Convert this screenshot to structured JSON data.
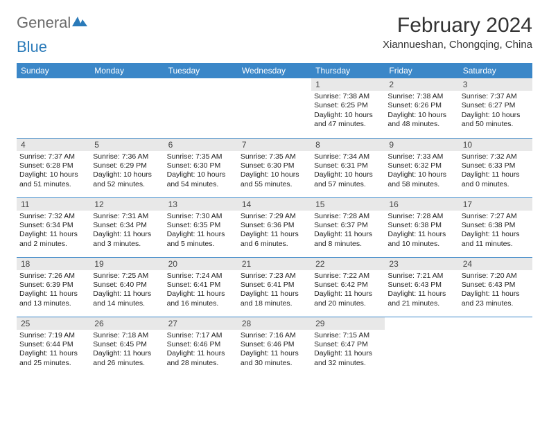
{
  "logo": {
    "general": "General",
    "blue": "Blue"
  },
  "title": "February 2024",
  "location": "Xiannueshan, Chongqing, China",
  "header_bg": "#3b87c8",
  "day_num_bg": "#e8e8e8",
  "border_color": "#3b87c8",
  "weekdays": [
    "Sunday",
    "Monday",
    "Tuesday",
    "Wednesday",
    "Thursday",
    "Friday",
    "Saturday"
  ],
  "weeks": [
    [
      null,
      null,
      null,
      null,
      {
        "n": "1",
        "sunrise": "7:38 AM",
        "sunset": "6:25 PM",
        "daylight": "10 hours and 47 minutes."
      },
      {
        "n": "2",
        "sunrise": "7:38 AM",
        "sunset": "6:26 PM",
        "daylight": "10 hours and 48 minutes."
      },
      {
        "n": "3",
        "sunrise": "7:37 AM",
        "sunset": "6:27 PM",
        "daylight": "10 hours and 50 minutes."
      }
    ],
    [
      {
        "n": "4",
        "sunrise": "7:37 AM",
        "sunset": "6:28 PM",
        "daylight": "10 hours and 51 minutes."
      },
      {
        "n": "5",
        "sunrise": "7:36 AM",
        "sunset": "6:29 PM",
        "daylight": "10 hours and 52 minutes."
      },
      {
        "n": "6",
        "sunrise": "7:35 AM",
        "sunset": "6:30 PM",
        "daylight": "10 hours and 54 minutes."
      },
      {
        "n": "7",
        "sunrise": "7:35 AM",
        "sunset": "6:30 PM",
        "daylight": "10 hours and 55 minutes."
      },
      {
        "n": "8",
        "sunrise": "7:34 AM",
        "sunset": "6:31 PM",
        "daylight": "10 hours and 57 minutes."
      },
      {
        "n": "9",
        "sunrise": "7:33 AM",
        "sunset": "6:32 PM",
        "daylight": "10 hours and 58 minutes."
      },
      {
        "n": "10",
        "sunrise": "7:32 AM",
        "sunset": "6:33 PM",
        "daylight": "11 hours and 0 minutes."
      }
    ],
    [
      {
        "n": "11",
        "sunrise": "7:32 AM",
        "sunset": "6:34 PM",
        "daylight": "11 hours and 2 minutes."
      },
      {
        "n": "12",
        "sunrise": "7:31 AM",
        "sunset": "6:34 PM",
        "daylight": "11 hours and 3 minutes."
      },
      {
        "n": "13",
        "sunrise": "7:30 AM",
        "sunset": "6:35 PM",
        "daylight": "11 hours and 5 minutes."
      },
      {
        "n": "14",
        "sunrise": "7:29 AM",
        "sunset": "6:36 PM",
        "daylight": "11 hours and 6 minutes."
      },
      {
        "n": "15",
        "sunrise": "7:28 AM",
        "sunset": "6:37 PM",
        "daylight": "11 hours and 8 minutes."
      },
      {
        "n": "16",
        "sunrise": "7:28 AM",
        "sunset": "6:38 PM",
        "daylight": "11 hours and 10 minutes."
      },
      {
        "n": "17",
        "sunrise": "7:27 AM",
        "sunset": "6:38 PM",
        "daylight": "11 hours and 11 minutes."
      }
    ],
    [
      {
        "n": "18",
        "sunrise": "7:26 AM",
        "sunset": "6:39 PM",
        "daylight": "11 hours and 13 minutes."
      },
      {
        "n": "19",
        "sunrise": "7:25 AM",
        "sunset": "6:40 PM",
        "daylight": "11 hours and 14 minutes."
      },
      {
        "n": "20",
        "sunrise": "7:24 AM",
        "sunset": "6:41 PM",
        "daylight": "11 hours and 16 minutes."
      },
      {
        "n": "21",
        "sunrise": "7:23 AM",
        "sunset": "6:41 PM",
        "daylight": "11 hours and 18 minutes."
      },
      {
        "n": "22",
        "sunrise": "7:22 AM",
        "sunset": "6:42 PM",
        "daylight": "11 hours and 20 minutes."
      },
      {
        "n": "23",
        "sunrise": "7:21 AM",
        "sunset": "6:43 PM",
        "daylight": "11 hours and 21 minutes."
      },
      {
        "n": "24",
        "sunrise": "7:20 AM",
        "sunset": "6:43 PM",
        "daylight": "11 hours and 23 minutes."
      }
    ],
    [
      {
        "n": "25",
        "sunrise": "7:19 AM",
        "sunset": "6:44 PM",
        "daylight": "11 hours and 25 minutes."
      },
      {
        "n": "26",
        "sunrise": "7:18 AM",
        "sunset": "6:45 PM",
        "daylight": "11 hours and 26 minutes."
      },
      {
        "n": "27",
        "sunrise": "7:17 AM",
        "sunset": "6:46 PM",
        "daylight": "11 hours and 28 minutes."
      },
      {
        "n": "28",
        "sunrise": "7:16 AM",
        "sunset": "6:46 PM",
        "daylight": "11 hours and 30 minutes."
      },
      {
        "n": "29",
        "sunrise": "7:15 AM",
        "sunset": "6:47 PM",
        "daylight": "11 hours and 32 minutes."
      },
      null,
      null
    ]
  ],
  "labels": {
    "sunrise": "Sunrise:",
    "sunset": "Sunset:",
    "daylight": "Daylight:"
  }
}
